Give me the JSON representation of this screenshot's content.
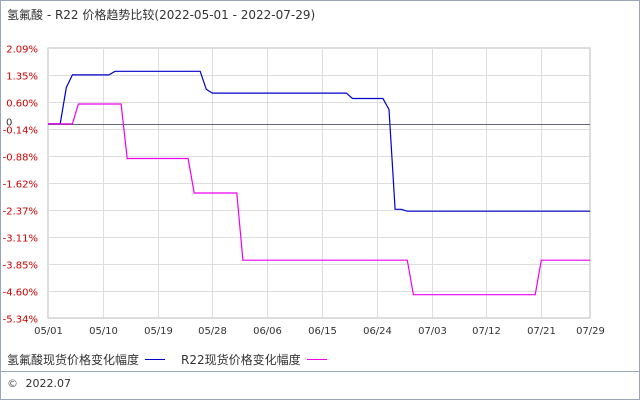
{
  "title": "氢氟酸 - R22 价格趋势比较(2022-05-01 - 2022-07-29)",
  "footer": {
    "copyright_symbol": "©",
    "date": "2022.07"
  },
  "chart_data": {
    "type": "line",
    "y_ticks": [
      "2.09%",
      "1.35%",
      "0.60%",
      "-0.14%",
      "-0.88%",
      "-1.62%",
      "-2.37%",
      "-3.11%",
      "-3.85%",
      "-4.60%",
      "-5.34%"
    ],
    "y_tick_values": [
      2.09,
      1.35,
      0.6,
      -0.14,
      -0.88,
      -1.62,
      -2.37,
      -3.11,
      -3.85,
      -4.6,
      -5.34
    ],
    "zero_label": "0",
    "ylim": [
      -5.34,
      2.09
    ],
    "x_ticks": [
      "05/01",
      "05/10",
      "05/19",
      "05/28",
      "06/06",
      "06/15",
      "06/24",
      "07/03",
      "07/12",
      "07/21",
      "07/29"
    ],
    "x_tick_days": [
      0,
      9,
      18,
      27,
      36,
      45,
      54,
      63,
      72,
      81,
      89
    ],
    "xlim_days": [
      0,
      89
    ],
    "series": [
      {
        "name": "氢氟酸现货价格变化幅度",
        "color": "#0000cc",
        "points": [
          [
            0,
            0
          ],
          [
            2,
            0
          ],
          [
            3,
            1.0
          ],
          [
            4,
            1.35
          ],
          [
            10,
            1.35
          ],
          [
            11,
            1.45
          ],
          [
            25,
            1.45
          ],
          [
            26,
            0.95
          ],
          [
            27,
            0.85
          ],
          [
            49,
            0.85
          ],
          [
            50,
            0.7
          ],
          [
            55,
            0.7
          ],
          [
            56,
            0.4
          ],
          [
            57,
            -2.35
          ],
          [
            58,
            -2.35
          ],
          [
            59,
            -2.4
          ],
          [
            89,
            -2.4
          ]
        ]
      },
      {
        "name": "R22现货价格变化幅度",
        "color": "#ee00ee",
        "points": [
          [
            0,
            0
          ],
          [
            4,
            0
          ],
          [
            5,
            0.55
          ],
          [
            12,
            0.55
          ],
          [
            13,
            -0.95
          ],
          [
            23,
            -0.95
          ],
          [
            24,
            -1.9
          ],
          [
            31,
            -1.9
          ],
          [
            32,
            -3.75
          ],
          [
            59,
            -3.75
          ],
          [
            60,
            -4.7
          ],
          [
            80,
            -4.7
          ],
          [
            81,
            -3.75
          ],
          [
            89,
            -3.75
          ]
        ]
      }
    ],
    "grid": true
  }
}
